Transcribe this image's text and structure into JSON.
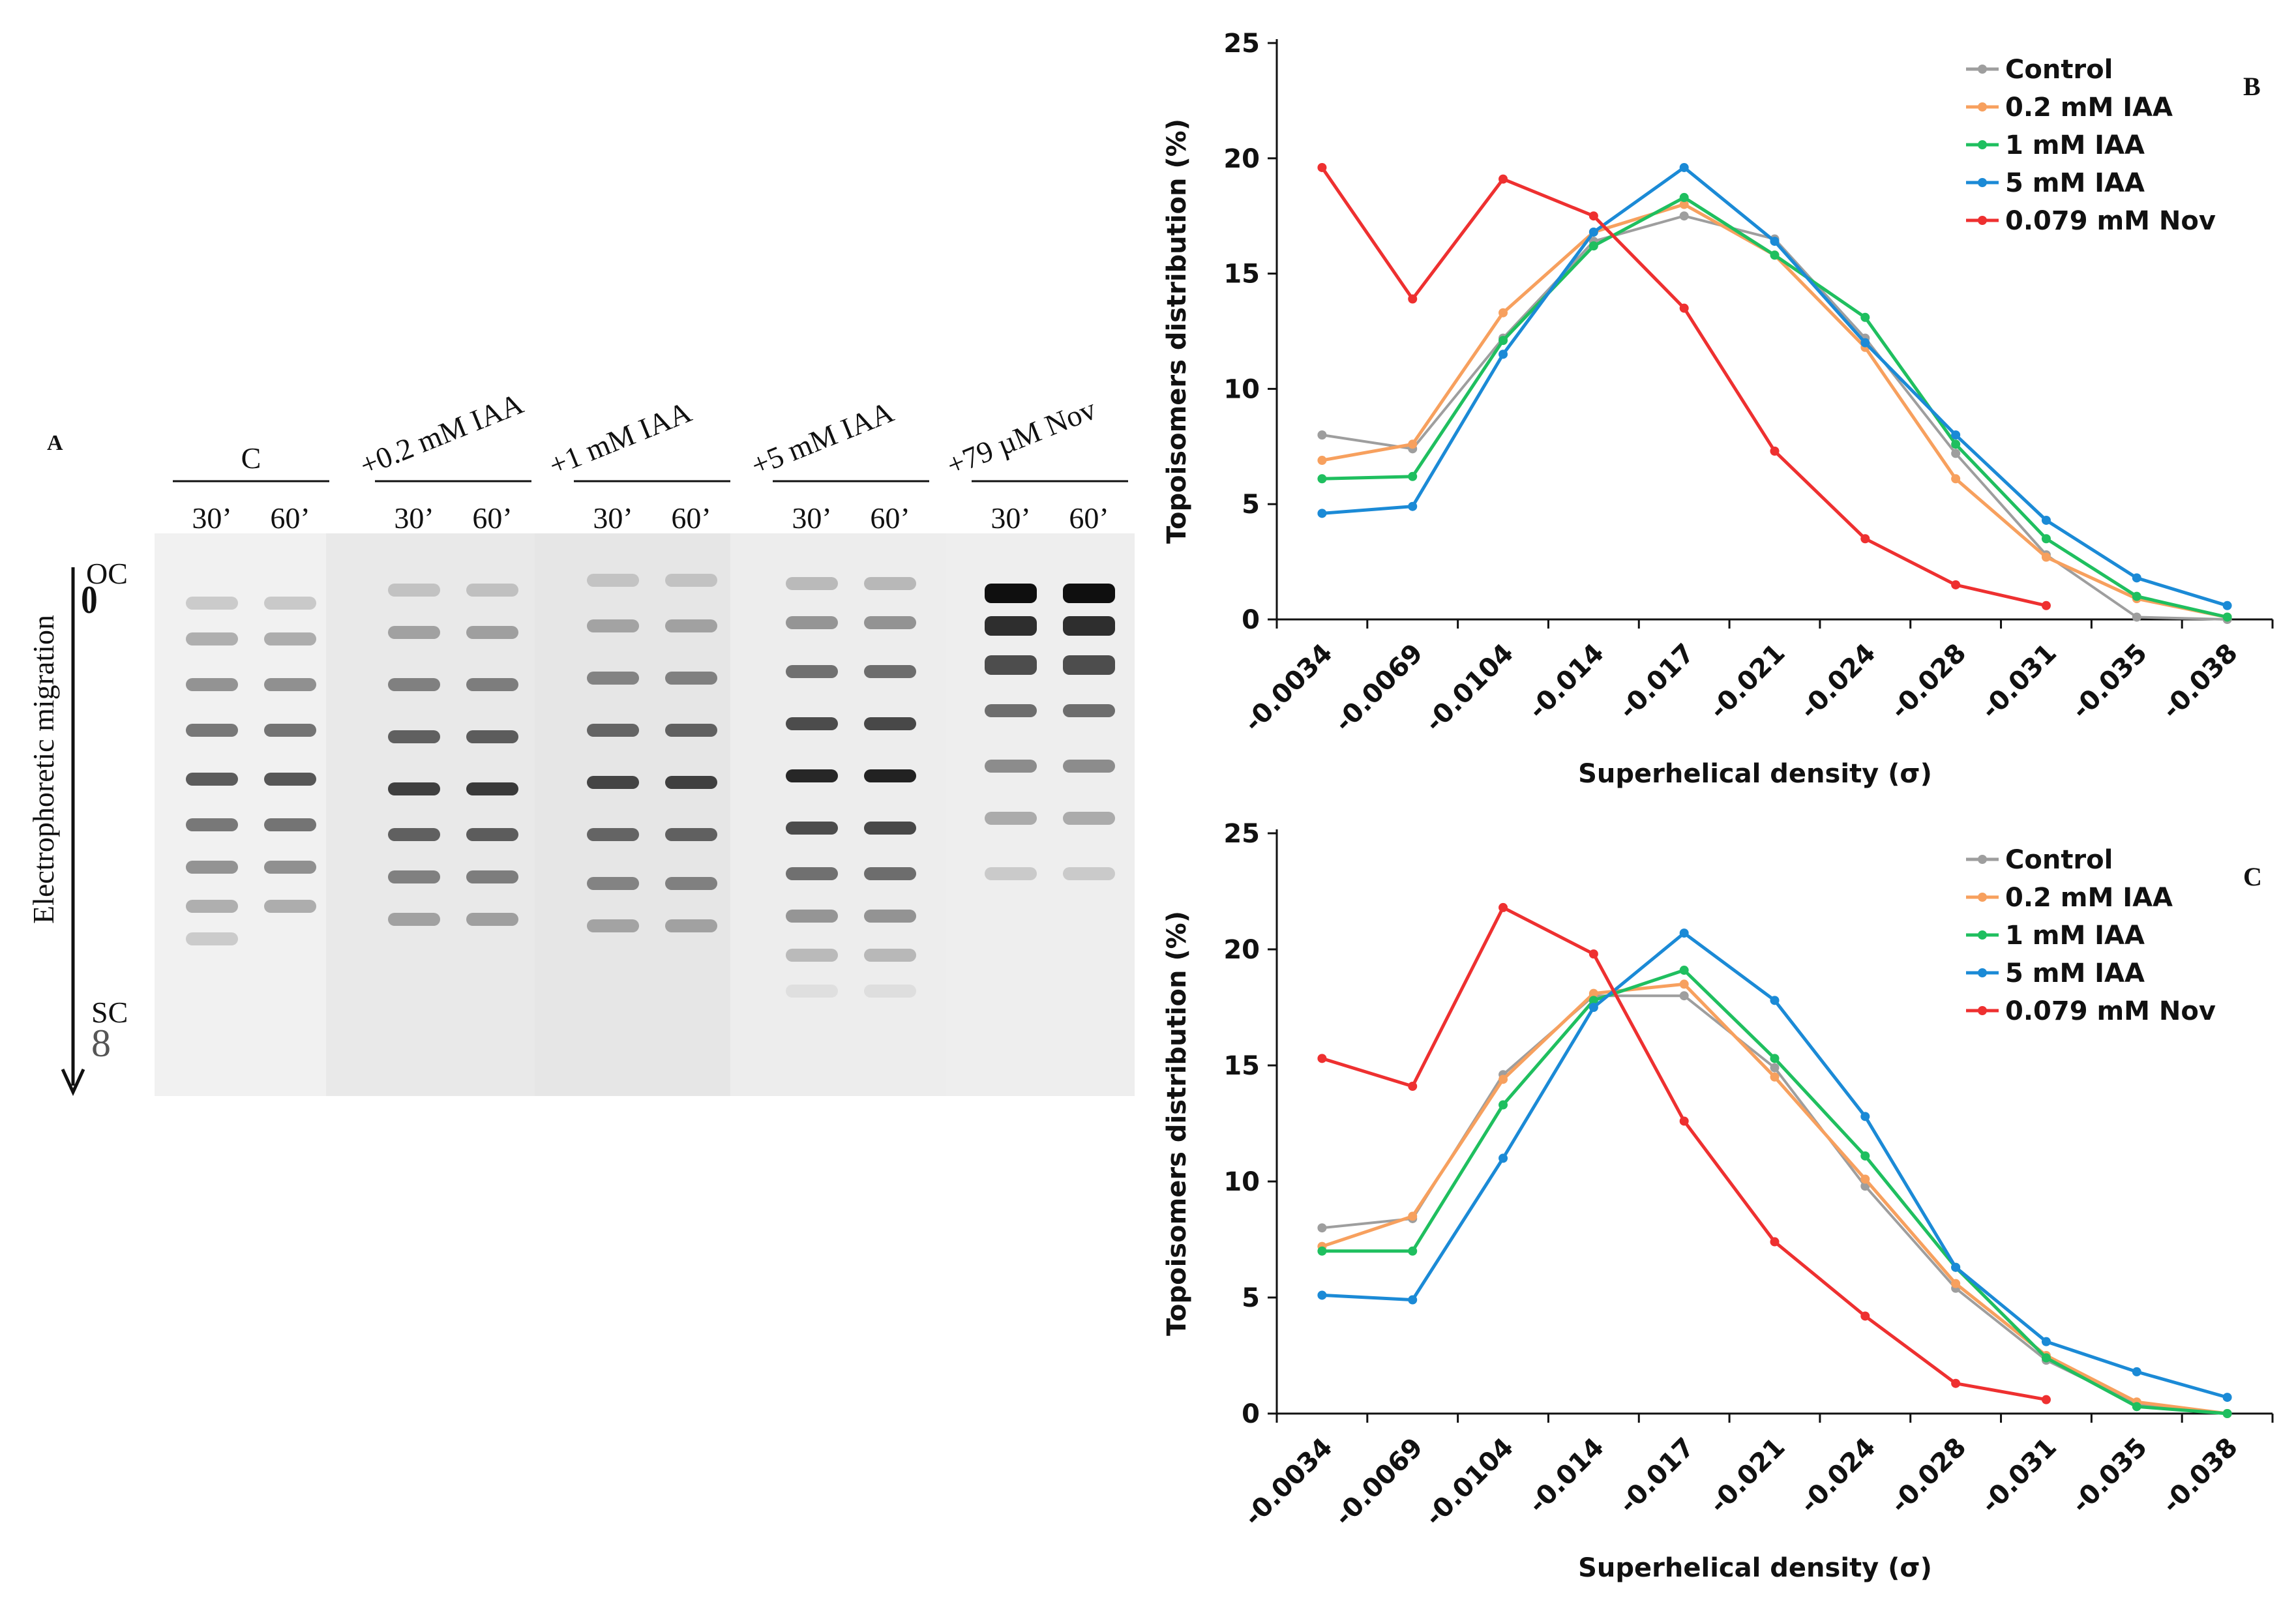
{
  "panel_a": {
    "label": "A",
    "axis_label": "Electrophoretic migration",
    "oc_label": "OC",
    "sc_label": "SC",
    "oc_symbol": "0",
    "sc_symbol": "8",
    "groups": [
      {
        "name": "C",
        "times": [
          "30’",
          "60’"
        ],
        "intensity": [
          0.68,
          0.7
        ],
        "bands": [
          9,
          8
        ]
      },
      {
        "name": "+0.2 mM IAA",
        "times": [
          "30’",
          "60’"
        ],
        "intensity": [
          0.8,
          0.82
        ],
        "bands": [
          8,
          8
        ]
      },
      {
        "name": "+1 mM IAA",
        "times": [
          "30’",
          "60’"
        ],
        "intensity": [
          0.78,
          0.8
        ],
        "bands": [
          8,
          8
        ]
      },
      {
        "name": "+5 mM IAA",
        "times": [
          "30’",
          "60’"
        ],
        "intensity": [
          0.9,
          0.92
        ],
        "bands": [
          10,
          10
        ]
      },
      {
        "name": "+79 µM Nov",
        "times": [
          "30’",
          "60’"
        ],
        "intensity": [
          1.0,
          1.0
        ],
        "bands": [
          7,
          7
        ]
      }
    ]
  },
  "chart_data": [
    {
      "type": "line",
      "panel_label": "B",
      "categories": [
        "-0.0034",
        "-0.0069",
        "-0.0104",
        "-0.014",
        "-0.017",
        "-0.021",
        "-0.024",
        "-0.028",
        "-0.031",
        "-0.035",
        "-0.038"
      ],
      "xlabel": "Superhelical density (σ)",
      "ylabel": "Topoisomers distribution (%)",
      "ylim": [
        0,
        25
      ],
      "yticks": [
        0,
        5,
        10,
        15,
        20,
        25
      ],
      "legend_position": "top-right",
      "series": [
        {
          "name": "Control",
          "color": "#9e9e9e",
          "values": [
            8.0,
            7.4,
            12.2,
            16.4,
            17.5,
            16.5,
            12.2,
            7.2,
            2.8,
            0.1,
            0.0
          ]
        },
        {
          "name": "0.2 mM IAA",
          "color": "#f7a05e",
          "values": [
            6.9,
            7.6,
            13.3,
            16.8,
            18.0,
            15.8,
            11.8,
            6.1,
            2.7,
            0.9,
            0.1
          ]
        },
        {
          "name": "1 mM IAA",
          "color": "#1fbf5f",
          "values": [
            6.1,
            6.2,
            12.1,
            16.2,
            18.3,
            15.8,
            13.1,
            7.6,
            3.5,
            1.0,
            0.1
          ]
        },
        {
          "name": "5 mM IAA",
          "color": "#1b8ad6",
          "values": [
            4.6,
            4.9,
            11.5,
            16.8,
            19.6,
            16.4,
            12.0,
            8.0,
            4.3,
            1.8,
            0.6
          ]
        },
        {
          "name": "0.079 mM Nov",
          "color": "#ee3030",
          "values": [
            19.6,
            13.9,
            19.1,
            17.5,
            13.5,
            7.3,
            3.5,
            1.5,
            0.6,
            null,
            null
          ]
        }
      ]
    },
    {
      "type": "line",
      "panel_label": "C",
      "categories": [
        "-0.0034",
        "-0.0069",
        "-0.0104",
        "-0.014",
        "-0.017",
        "-0.021",
        "-0.024",
        "-0.028",
        "-0.031",
        "-0.035",
        "-0.038"
      ],
      "xlabel": "Superhelical density (σ)",
      "ylabel": "Topoisomers distribution (%)",
      "ylim": [
        0,
        25
      ],
      "yticks": [
        0,
        5,
        10,
        15,
        20,
        25
      ],
      "legend_position": "top-right",
      "series": [
        {
          "name": "Control",
          "color": "#9e9e9e",
          "values": [
            8.0,
            8.4,
            14.6,
            18.0,
            18.0,
            14.9,
            9.8,
            5.4,
            2.3,
            0.4,
            0.0
          ]
        },
        {
          "name": "0.2 mM IAA",
          "color": "#f7a05e",
          "values": [
            7.2,
            8.5,
            14.4,
            18.1,
            18.5,
            14.5,
            10.1,
            5.6,
            2.5,
            0.5,
            0.0
          ]
        },
        {
          "name": "1 mM IAA",
          "color": "#1fbf5f",
          "values": [
            7.0,
            7.0,
            13.3,
            17.8,
            19.1,
            15.3,
            11.1,
            6.3,
            2.4,
            0.3,
            0.0
          ]
        },
        {
          "name": "5 mM IAA",
          "color": "#1b8ad6",
          "values": [
            5.1,
            4.9,
            11.0,
            17.5,
            20.7,
            17.8,
            12.8,
            6.3,
            3.1,
            1.8,
            0.7
          ]
        },
        {
          "name": "0.079 mM Nov",
          "color": "#ee3030",
          "values": [
            15.3,
            14.1,
            21.8,
            19.8,
            12.6,
            7.4,
            4.2,
            1.3,
            0.6,
            null,
            null
          ]
        }
      ]
    }
  ]
}
